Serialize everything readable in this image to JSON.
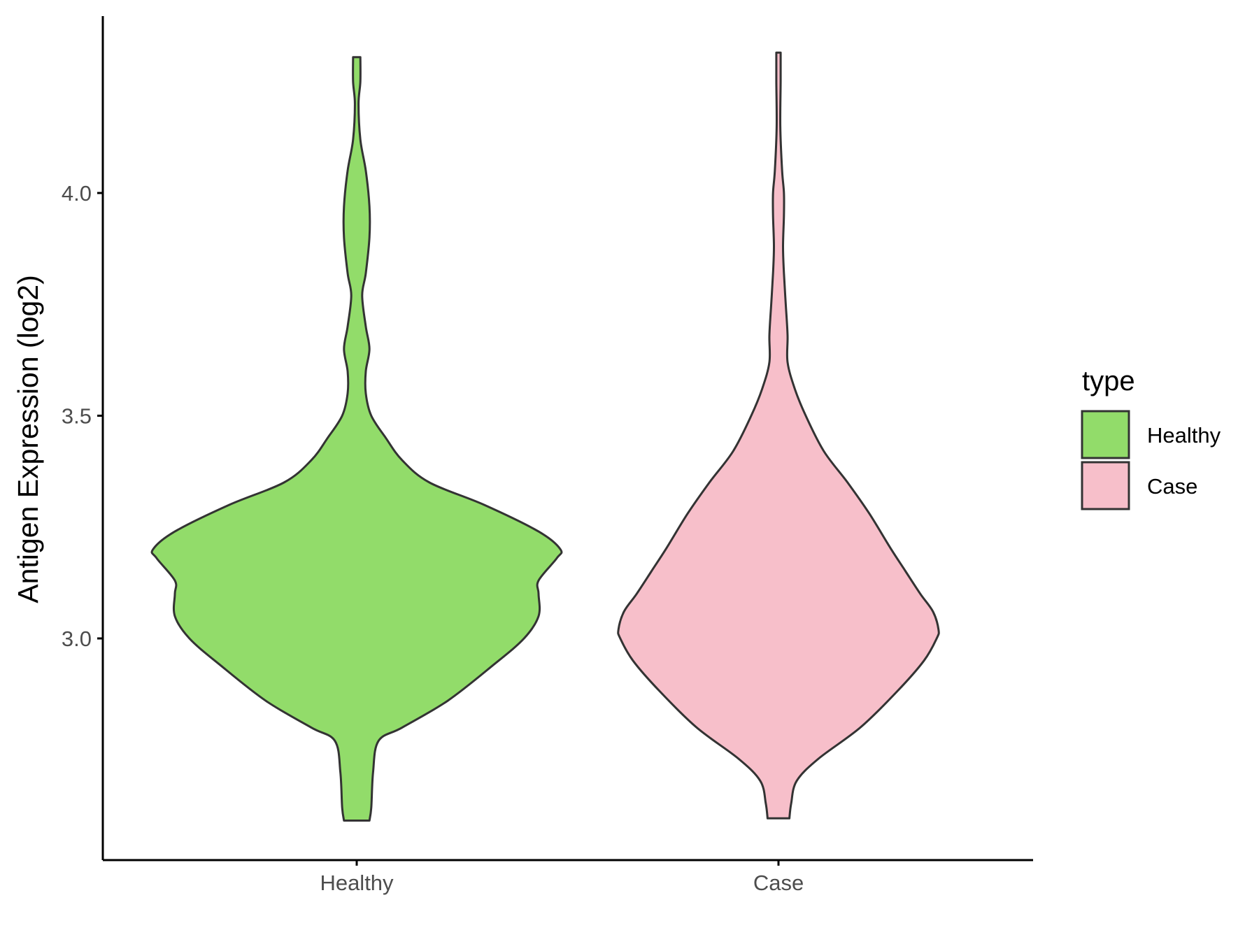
{
  "chart_data": {
    "type": "violin",
    "ylabel": "Antigen Expression (log2)",
    "xlabel": "",
    "categories": [
      "Healthy",
      "Case"
    ],
    "yticks": [
      3.0,
      3.5,
      4.0
    ],
    "ytick_labels": [
      "3.0",
      "3.5",
      "4.0"
    ],
    "ylim": [
      2.5,
      4.4
    ],
    "grid": false,
    "legend": {
      "title": "type",
      "placement": "right",
      "entries": [
        {
          "label": "Healthy",
          "color": "#92DC6A"
        },
        {
          "label": "Case",
          "color": "#F7BFCA"
        }
      ]
    },
    "series": [
      {
        "category": "Healthy",
        "color": "#92DC6A",
        "y_range": [
          2.591,
          4.305
        ],
        "density_profile": [
          [
            2.591,
            0.07
          ],
          [
            2.62,
            0.08
          ],
          [
            2.7,
            0.09
          ],
          [
            2.77,
            0.12
          ],
          [
            2.8,
            0.25
          ],
          [
            2.86,
            0.5
          ],
          [
            2.94,
            0.75
          ],
          [
            3.0,
            0.92
          ],
          [
            3.05,
            1.0
          ],
          [
            3.1,
            1.0
          ],
          [
            3.13,
            1.0
          ],
          [
            3.18,
            1.1
          ],
          [
            3.2,
            1.12
          ],
          [
            3.24,
            1.0
          ],
          [
            3.3,
            0.7
          ],
          [
            3.35,
            0.4
          ],
          [
            3.4,
            0.25
          ],
          [
            3.45,
            0.16
          ],
          [
            3.5,
            0.08
          ],
          [
            3.55,
            0.05
          ],
          [
            3.6,
            0.05
          ],
          [
            3.65,
            0.07
          ],
          [
            3.7,
            0.05
          ],
          [
            3.77,
            0.03
          ],
          [
            3.82,
            0.05
          ],
          [
            3.9,
            0.07
          ],
          [
            3.97,
            0.07
          ],
          [
            4.05,
            0.05
          ],
          [
            4.12,
            0.02
          ],
          [
            4.2,
            0.01
          ],
          [
            4.25,
            0.02
          ],
          [
            4.305,
            0.02
          ]
        ]
      },
      {
        "category": "Case",
        "color": "#F7BFCA",
        "y_range": [
          2.596,
          4.315
        ],
        "density_profile": [
          [
            2.596,
            0.06
          ],
          [
            2.63,
            0.07
          ],
          [
            2.68,
            0.1
          ],
          [
            2.73,
            0.22
          ],
          [
            2.8,
            0.45
          ],
          [
            2.88,
            0.65
          ],
          [
            2.95,
            0.8
          ],
          [
            3.0,
            0.87
          ],
          [
            3.02,
            0.88
          ],
          [
            3.06,
            0.85
          ],
          [
            3.1,
            0.78
          ],
          [
            3.15,
            0.7
          ],
          [
            3.2,
            0.62
          ],
          [
            3.28,
            0.5
          ],
          [
            3.35,
            0.38
          ],
          [
            3.42,
            0.25
          ],
          [
            3.5,
            0.15
          ],
          [
            3.56,
            0.09
          ],
          [
            3.62,
            0.05
          ],
          [
            3.68,
            0.05
          ],
          [
            3.75,
            0.04
          ],
          [
            3.82,
            0.03
          ],
          [
            3.88,
            0.025
          ],
          [
            3.95,
            0.03
          ],
          [
            4.0,
            0.03
          ],
          [
            4.05,
            0.02
          ],
          [
            4.15,
            0.01
          ],
          [
            4.25,
            0.012
          ],
          [
            4.315,
            0.012
          ]
        ]
      }
    ]
  }
}
